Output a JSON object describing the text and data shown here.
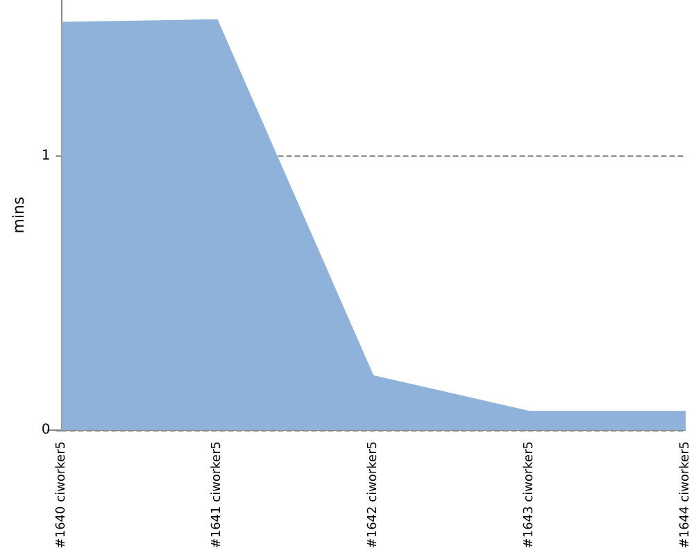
{
  "chart_data": {
    "type": "area",
    "ylabel": "mins",
    "categories": [
      "#1640 ciworker5",
      "#1641 ciworker5",
      "#1642 ciworker5",
      "#1643 ciworker5",
      "#1644 ciworker5"
    ],
    "series": [
      {
        "color": "#8fb2da",
        "values": [
          1.49,
          1.5,
          0.2,
          0.07,
          0.07
        ]
      }
    ],
    "ylim": [
      0,
      1.57
    ],
    "yticks": [
      0,
      1
    ],
    "grid": "y",
    "line_style": "dashed",
    "marker": "none"
  }
}
